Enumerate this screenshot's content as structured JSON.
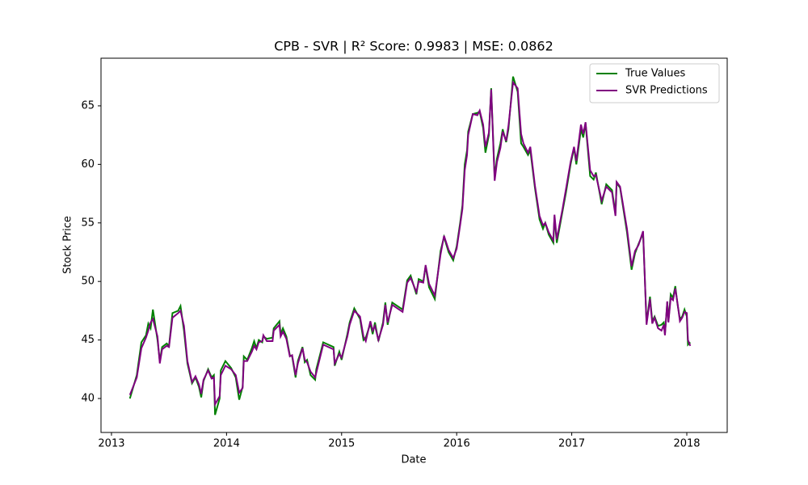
{
  "chart_data": {
    "type": "line",
    "title": "CPB - SVR | R² Score: 0.9983 | MSE: 0.0862",
    "xlabel": "Date",
    "ylabel": "Stock Price",
    "xlim": [
      2012.909,
      2018.351
    ],
    "ylim": [
      37.1,
      69.07
    ],
    "xticks": [
      2013,
      2014,
      2015,
      2016,
      2017,
      2018
    ],
    "yticks": [
      40,
      45,
      50,
      55,
      60,
      65
    ],
    "grid": false,
    "legend": "upper right",
    "x": [
      2013.16,
      2013.22,
      2013.26,
      2013.3,
      2013.32,
      2013.34,
      2013.36,
      2013.4,
      2013.42,
      2013.44,
      2013.48,
      2013.5,
      2013.53,
      2013.58,
      2013.6,
      2013.63,
      2013.66,
      2013.7,
      2013.73,
      2013.76,
      2013.78,
      2013.8,
      2013.84,
      2013.87,
      2013.89,
      2013.9,
      2013.94,
      2013.95,
      2013.99,
      2014.04,
      2014.08,
      2014.11,
      2014.14,
      2014.15,
      2014.18,
      2014.22,
      2014.24,
      2014.26,
      2014.28,
      2014.31,
      2014.32,
      2014.35,
      2014.4,
      2014.41,
      2014.46,
      2014.47,
      2014.49,
      2014.52,
      2014.55,
      2014.57,
      2014.6,
      2014.62,
      2014.66,
      2014.68,
      2014.7,
      2014.73,
      2014.77,
      2014.78,
      2014.84,
      2014.93,
      2014.94,
      2014.98,
      2015.0,
      2015.05,
      2015.07,
      2015.11,
      2015.16,
      2015.19,
      2015.21,
      2015.25,
      2015.27,
      2015.29,
      2015.32,
      2015.36,
      2015.38,
      2015.4,
      2015.44,
      2015.53,
      2015.57,
      2015.6,
      2015.65,
      2015.67,
      2015.71,
      2015.73,
      2015.76,
      2015.81,
      2015.86,
      2015.89,
      2015.93,
      2015.97,
      2016.0,
      2016.03,
      2016.05,
      2016.07,
      2016.09,
      2016.1,
      2016.14,
      2016.18,
      2016.2,
      2016.23,
      2016.25,
      2016.28,
      2016.3,
      2016.33,
      2016.35,
      2016.38,
      2016.4,
      2016.43,
      2016.45,
      2016.49,
      2016.53,
      2016.56,
      2016.58,
      2016.62,
      2016.64,
      2016.68,
      2016.72,
      2016.75,
      2016.77,
      2016.8,
      2016.84,
      2016.85,
      2016.87,
      2016.92,
      2016.95,
      2016.99,
      2017.02,
      2017.04,
      2017.08,
      2017.1,
      2017.12,
      2017.16,
      2017.19,
      2017.21,
      2017.26,
      2017.3,
      2017.35,
      2017.38,
      2017.39,
      2017.42,
      2017.48,
      2017.52,
      2017.55,
      2017.58,
      2017.62,
      2017.65,
      2017.68,
      2017.7,
      2017.72,
      2017.75,
      2017.78,
      2017.8,
      2017.81,
      2017.83,
      2017.84,
      2017.86,
      2017.88,
      2017.9,
      2017.92,
      2017.94,
      2017.96,
      2017.98,
      2018.0,
      2018.01,
      2018.03
    ],
    "series": [
      {
        "name": "True Values",
        "color": "#008000",
        "values": [
          40.0,
          42.0,
          44.8,
          45.4,
          46.4,
          46.0,
          47.6,
          45.0,
          43.2,
          44.4,
          44.7,
          44.5,
          47.3,
          47.5,
          47.9,
          45.8,
          43.0,
          41.3,
          41.8,
          41.0,
          40.1,
          41.5,
          42.5,
          41.8,
          42.0,
          38.6,
          40.0,
          42.4,
          43.2,
          42.6,
          41.8,
          39.9,
          41.0,
          43.6,
          43.3,
          44.3,
          44.9,
          44.3,
          45.0,
          44.8,
          45.3,
          45.1,
          45.2,
          46.0,
          46.6,
          45.5,
          46.0,
          45.3,
          43.7,
          43.6,
          41.8,
          43.2,
          44.4,
          43.1,
          43.3,
          42.0,
          41.6,
          42.5,
          44.8,
          44.4,
          42.8,
          44.0,
          43.3,
          45.5,
          46.5,
          47.7,
          46.8,
          45.0,
          45.2,
          46.4,
          45.5,
          46.5,
          44.9,
          46.5,
          48.2,
          46.3,
          48.2,
          47.6,
          50.1,
          50.5,
          48.9,
          50.2,
          50.0,
          51.3,
          49.5,
          48.5,
          52.6,
          53.8,
          52.5,
          51.8,
          53.0,
          55.0,
          56.5,
          60.0,
          61.2,
          62.8,
          64.3,
          64.4,
          64.5,
          63.1,
          61.0,
          62.5,
          66.5,
          58.9,
          60.5,
          61.8,
          63.0,
          61.9,
          63.0,
          67.5,
          66.2,
          61.8,
          61.5,
          60.8,
          61.2,
          58.0,
          55.3,
          54.5,
          55.0,
          54.0,
          53.3,
          55.5,
          53.3,
          56.0,
          57.6,
          60.0,
          61.4,
          60.0,
          63.0,
          62.3,
          63.5,
          59.0,
          58.7,
          59.3,
          56.6,
          58.3,
          57.8,
          55.8,
          58.4,
          58.0,
          54.2,
          51.0,
          52.4,
          53.2,
          54.1,
          46.5,
          48.7,
          46.6,
          47.0,
          46.2,
          46.3,
          46.5,
          45.5,
          48.2,
          46.6,
          48.9,
          48.6,
          49.6,
          48.0,
          46.8,
          47.0,
          47.6,
          47.0,
          44.6,
          44.8
        ]
      },
      {
        "name": "SVR Predictions",
        "color": "#800080",
        "values": [
          40.3,
          41.8,
          44.3,
          45.2,
          45.8,
          46.5,
          46.8,
          45.3,
          43.0,
          44.2,
          44.5,
          44.4,
          46.9,
          47.3,
          47.5,
          46.2,
          43.2,
          41.4,
          41.9,
          41.2,
          40.4,
          41.6,
          42.4,
          41.7,
          41.8,
          39.5,
          40.2,
          42.0,
          42.8,
          42.5,
          42.0,
          40.5,
          40.9,
          43.2,
          43.2,
          44.0,
          44.5,
          44.2,
          44.8,
          44.9,
          45.4,
          44.9,
          44.9,
          45.8,
          46.3,
          45.3,
          45.7,
          45.1,
          43.6,
          43.7,
          42.0,
          43.0,
          44.3,
          43.3,
          43.1,
          42.3,
          41.8,
          42.2,
          44.6,
          44.2,
          43.0,
          43.8,
          43.5,
          45.3,
          46.3,
          47.5,
          47.0,
          45.3,
          44.9,
          46.6,
          45.8,
          46.2,
          45.0,
          46.3,
          48.0,
          46.5,
          48.0,
          47.4,
          49.9,
          50.3,
          49.1,
          50.0,
          49.9,
          51.4,
          49.8,
          48.8,
          52.3,
          53.9,
          52.7,
          52.0,
          52.8,
          54.8,
          56.2,
          59.5,
          60.8,
          62.5,
          64.3,
          64.2,
          64.6,
          63.4,
          61.5,
          62.7,
          66.4,
          58.6,
          60.2,
          61.4,
          62.8,
          62.0,
          63.3,
          67.0,
          66.5,
          62.6,
          61.8,
          61.0,
          61.5,
          58.2,
          55.6,
          54.8,
          55.0,
          54.2,
          53.5,
          55.7,
          53.6,
          56.2,
          57.9,
          60.2,
          61.5,
          60.3,
          63.4,
          62.6,
          63.6,
          59.5,
          59.0,
          59.1,
          56.9,
          58.1,
          57.6,
          55.6,
          58.5,
          58.1,
          54.5,
          51.3,
          52.6,
          53.1,
          54.3,
          46.3,
          48.5,
          46.4,
          46.9,
          46.0,
          45.8,
          46.3,
          45.4,
          48.3,
          46.5,
          48.6,
          48.4,
          49.4,
          48.1,
          46.6,
          46.9,
          47.4,
          47.3,
          45.0,
          44.5
        ]
      }
    ]
  }
}
